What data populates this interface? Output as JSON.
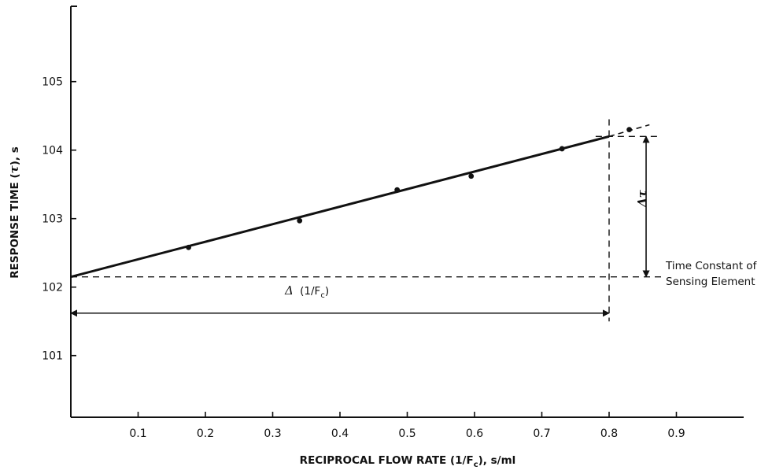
{
  "chart_data": {
    "type": "scatter",
    "title": "",
    "xlabel": {
      "prefix": "RECIPROCAL FLOW RATE (1/F",
      "sub": "c",
      "suffix": "), s/ml"
    },
    "ylabel": {
      "prefix": "RESPONSE TIME (",
      "symbol": "τ",
      "suffix": "), s"
    },
    "xlim": [
      0,
      1.0
    ],
    "ylim": [
      100.1,
      106.1
    ],
    "x_ticks": [
      0.1,
      0.2,
      0.3,
      0.4,
      0.5,
      0.6,
      0.7,
      0.8,
      0.9
    ],
    "x_tick_labels": [
      "0.1",
      "0.2",
      "0.3",
      "0.4",
      "0.5",
      "0.6",
      "0.7",
      "0.8",
      "0.9"
    ],
    "y_ticks": [
      101,
      102,
      103,
      104,
      105
    ],
    "y_tick_labels": [
      "101",
      "102",
      "103",
      "104",
      "105"
    ],
    "grid": false,
    "points": [
      {
        "x": 0.175,
        "y": 102.58
      },
      {
        "x": 0.34,
        "y": 102.97
      },
      {
        "x": 0.485,
        "y": 103.42
      },
      {
        "x": 0.595,
        "y": 103.62
      },
      {
        "x": 0.73,
        "y": 104.02
      },
      {
        "x": 0.83,
        "y": 104.3
      }
    ],
    "fit_line": {
      "solid": [
        [
          0.0,
          102.15
        ],
        [
          0.8,
          104.2
        ]
      ],
      "dashed_extension": [
        [
          0.8,
          104.2
        ],
        [
          0.86,
          104.37
        ]
      ]
    },
    "reference_lines": {
      "horizontal_dashed_y": [
        102.15,
        104.2
      ],
      "vertical_dashed_x": 0.8
    },
    "annotations": {
      "delta_x": {
        "symbol": "Δ",
        "prefix": " (1/F",
        "sub": "c",
        "suffix": ")"
      },
      "delta_y": {
        "symbol": "Δτ"
      },
      "time_constant": [
        "Time Constant of",
        "Sensing Element"
      ]
    }
  }
}
